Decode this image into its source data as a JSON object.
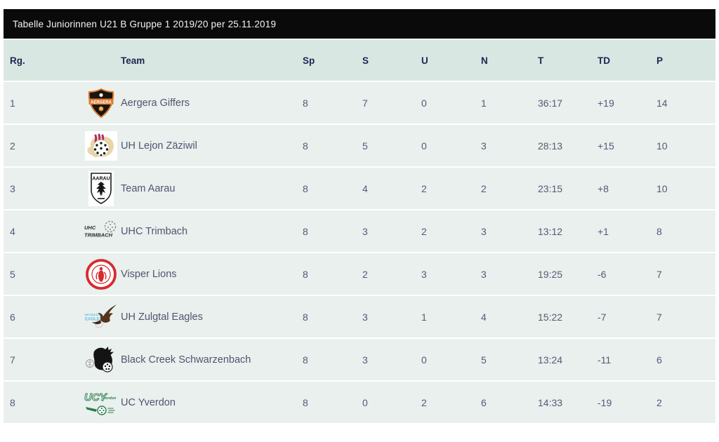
{
  "widget": {
    "title": "Tabelle Juniorinnen U21 B Gruppe 1 2019/20 per 25.11.2019"
  },
  "table": {
    "columns": [
      "Rg.",
      "Team",
      "Sp",
      "S",
      "U",
      "N",
      "T",
      "TD",
      "P"
    ],
    "rows": [
      {
        "rank": "1",
        "team": "Aergera Giffers",
        "logo": "aergera-giffers-logo",
        "sp": "8",
        "s": "7",
        "u": "0",
        "n": "1",
        "t": "36:17",
        "td": "+19",
        "p": "14"
      },
      {
        "rank": "2",
        "team": "UH Lejon Zäziwil",
        "logo": "uh-lejon-zaeziwil-logo",
        "sp": "8",
        "s": "5",
        "u": "0",
        "n": "3",
        "t": "28:13",
        "td": "+15",
        "p": "10"
      },
      {
        "rank": "3",
        "team": "Team Aarau",
        "logo": "team-aarau-logo",
        "sp": "8",
        "s": "4",
        "u": "2",
        "n": "2",
        "t": "23:15",
        "td": "+8",
        "p": "10"
      },
      {
        "rank": "4",
        "team": "UHC Trimbach",
        "logo": "uhc-trimbach-logo",
        "sp": "8",
        "s": "3",
        "u": "2",
        "n": "3",
        "t": "13:12",
        "td": "+1",
        "p": "8"
      },
      {
        "rank": "5",
        "team": "Visper Lions",
        "logo": "visper-lions-logo",
        "sp": "8",
        "s": "2",
        "u": "3",
        "n": "3",
        "t": "19:25",
        "td": "-6",
        "p": "7"
      },
      {
        "rank": "6",
        "team": "UH Zulgtal Eagles",
        "logo": "uh-zulgtal-eagles-logo",
        "sp": "8",
        "s": "3",
        "u": "1",
        "n": "4",
        "t": "15:22",
        "td": "-7",
        "p": "7"
      },
      {
        "rank": "7",
        "team": "Black Creek Schwarzenbach",
        "logo": "black-creek-schwarzenbach-logo",
        "sp": "8",
        "s": "3",
        "u": "0",
        "n": "5",
        "t": "13:24",
        "td": "-11",
        "p": "6"
      },
      {
        "rank": "8",
        "team": "UC Yverdon",
        "logo": "uc-yverdon-logo",
        "sp": "8",
        "s": "0",
        "u": "2",
        "n": "6",
        "t": "14:33",
        "td": "-19",
        "p": "2"
      }
    ]
  },
  "colors": {
    "title_bar_bg": "#0a0a0a",
    "title_bar_text": "#f4f4f4",
    "header_row_bg": "#d9e7e2",
    "header_text": "#1b2650",
    "data_row_bg": "#e9f0ed",
    "data_text": "#585876"
  }
}
